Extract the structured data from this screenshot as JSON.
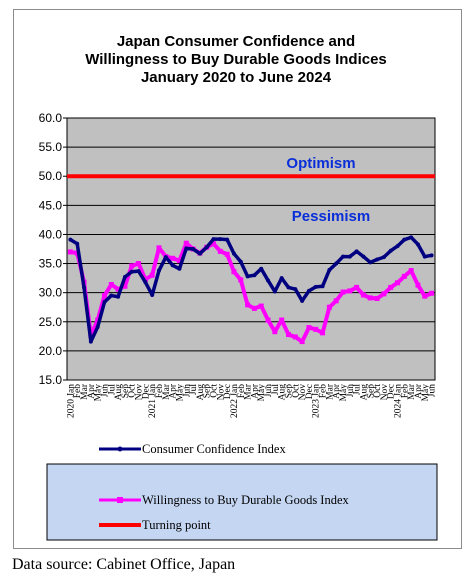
{
  "chart_data": {
    "type": "line",
    "title_lines": [
      "Japan Consumer Confidence and",
      "Willingness to Buy Durable Goods Indices",
      "January 2020 to June 2024"
    ],
    "ylim": [
      15,
      60
    ],
    "y_ticks": [
      "60.0",
      "55.0",
      "50.0",
      "45.0",
      "40.0",
      "35.0",
      "30.0",
      "25.0",
      "20.0",
      "15.0"
    ],
    "x_labels": [
      "2020 Jan",
      "Feb",
      "Mar",
      "Apr",
      "May",
      "Jun",
      "Jul",
      "Aug",
      "Sep",
      "Oct",
      "Nov",
      "Dec",
      "2021 Jan",
      "Feb",
      "Mar",
      "Apr",
      "May",
      "Jun",
      "Jul",
      "Aug",
      "Sep",
      "Oct",
      "Nov",
      "Dec",
      "2022 Jan",
      "Feb",
      "Mar",
      "Apr",
      "May",
      "Jun",
      "Jul",
      "Aug",
      "Sep",
      "Oct",
      "Nov",
      "Dec",
      "2023 Jan",
      "Feb",
      "Mar",
      "Apr",
      "May",
      "Jun",
      "Jul",
      "Aug",
      "Sep",
      "Oct",
      "Nov",
      "Dec",
      "2024 Jan",
      "Feb",
      "Mar",
      "Apr",
      "May",
      "Jun"
    ],
    "series": [
      {
        "name": "Consumer Confidence Index",
        "color": "#000080",
        "values": [
          39.1,
          38.4,
          30.9,
          21.6,
          24.1,
          28.4,
          29.5,
          29.3,
          32.7,
          33.6,
          33.7,
          31.8,
          29.6,
          33.8,
          36.1,
          34.7,
          34.1,
          37.6,
          37.5,
          36.7,
          37.8,
          39.2,
          39.2,
          39.1,
          36.7,
          35.3,
          32.8,
          33.0,
          34.1,
          32.1,
          30.2,
          32.5,
          30.9,
          30.6,
          28.6,
          30.3,
          31.0,
          31.1,
          33.9,
          35.0,
          36.2,
          36.2,
          37.1,
          36.2,
          35.2,
          35.7,
          36.1,
          37.2,
          38.0,
          39.1,
          39.5,
          38.3,
          36.2,
          36.4
        ]
      },
      {
        "name": "Willingness to Buy Durable Goods Index",
        "color": "#ff00ff",
        "values": [
          37.0,
          36.8,
          31.8,
          22.7,
          25.3,
          29.5,
          31.4,
          30.6,
          31.1,
          34.6,
          35.0,
          32.3,
          33.0,
          37.7,
          36.2,
          35.9,
          35.5,
          38.5,
          37.5,
          36.8,
          37.8,
          38.4,
          37.1,
          36.6,
          33.6,
          32.2,
          27.9,
          27.3,
          27.7,
          25.3,
          23.3,
          25.3,
          22.8,
          22.4,
          21.6,
          24.0,
          23.7,
          23.1,
          27.5,
          28.6,
          30.1,
          30.3,
          30.9,
          29.6,
          29.1,
          29.0,
          29.8,
          30.9,
          31.7,
          32.8,
          33.8,
          31.3,
          29.4,
          29.9
        ]
      },
      {
        "name": "Turning point",
        "color": "#ff0000",
        "values": [
          50,
          50,
          50,
          50,
          50,
          50,
          50,
          50,
          50,
          50,
          50,
          50,
          50,
          50,
          50,
          50,
          50,
          50,
          50,
          50,
          50,
          50,
          50,
          50,
          50,
          50,
          50,
          50,
          50,
          50,
          50,
          50,
          50,
          50,
          50,
          50,
          50,
          50,
          50,
          50,
          50,
          50,
          50,
          50,
          50,
          50,
          50,
          50,
          50,
          50,
          50,
          50,
          50,
          50
        ]
      }
    ],
    "annotations": [
      "Optimism",
      "Pessimism"
    ],
    "grid": true,
    "legend_position": "bottom",
    "plot_background": "#c0c0c0",
    "legend_background": "#c5d6f2"
  },
  "source": "Data source: Cabinet Office, Japan"
}
